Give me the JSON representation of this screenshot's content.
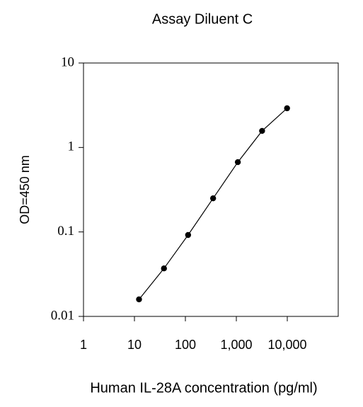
{
  "chart_data": {
    "type": "line",
    "title": "Assay Diluent C",
    "x_label": "Human IL-28A concentration (pg/ml)",
    "y_label": "OD=450 nm",
    "x": [
      12.3,
      38,
      113,
      350,
      1070,
      3200,
      9900
    ],
    "values": [
      0.0159,
      0.037,
      0.092,
      0.25,
      0.67,
      1.57,
      2.91
    ],
    "color": "#000000",
    "x_log": true,
    "y_log": true,
    "xlim": [
      1,
      100000
    ],
    "ylim": [
      0.01,
      10
    ],
    "xticks": [
      1,
      10,
      100,
      {
        "value": 1000,
        "label": "1,000"
      },
      {
        "value": 10000,
        "label": "10,000"
      }
    ],
    "yticks": [
      0.01,
      0.1,
      1,
      10
    ]
  }
}
